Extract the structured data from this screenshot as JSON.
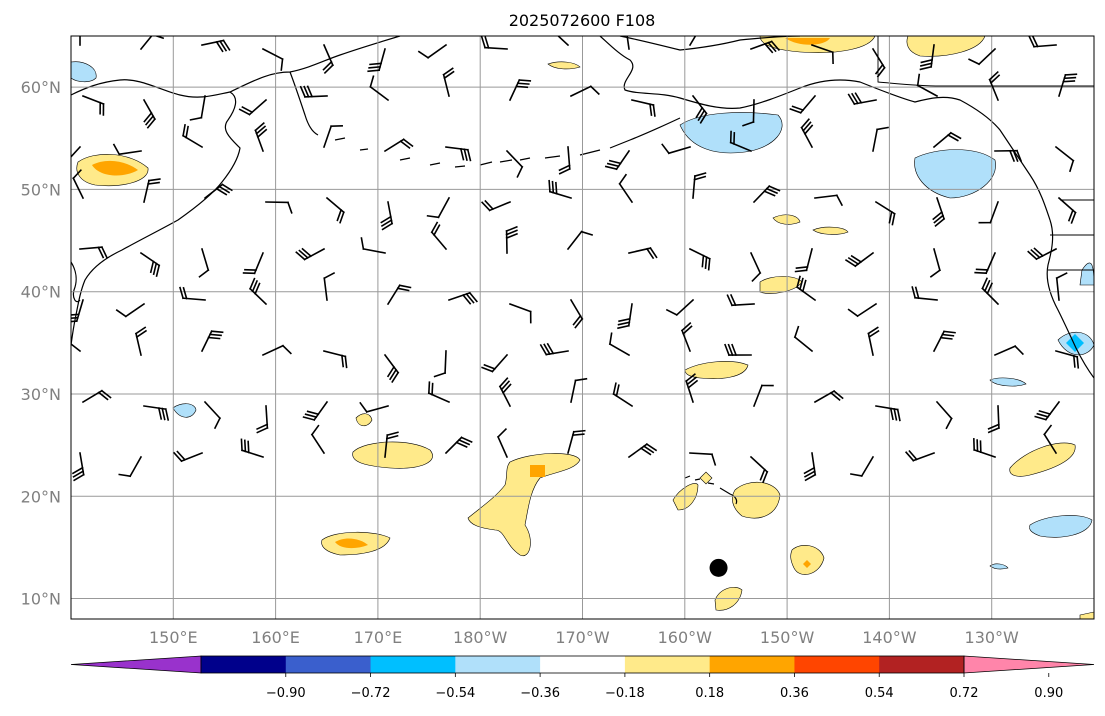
{
  "title": "2025072600 F108",
  "map": {
    "lat_labels": [
      "60°N",
      "50°N",
      "40°N",
      "30°N",
      "20°N",
      "10°N"
    ],
    "lon_labels": [
      "150°E",
      "160°E",
      "170°E",
      "180°W",
      "170°W",
      "160°W",
      "150°W",
      "140°W",
      "130°W"
    ],
    "lat_values": [
      60,
      50,
      40,
      30,
      20,
      10
    ],
    "lon_values": [
      150,
      160,
      170,
      180,
      190,
      200,
      210,
      220,
      230
    ],
    "extent": {
      "lon_min": 140,
      "lon_max": 240,
      "lat_min": 8,
      "lat_max": 65
    },
    "grid": true,
    "storm_marker": {
      "lon": 203.3,
      "lat": 13.0
    }
  },
  "colorbar": {
    "ticks": [
      "−0.90",
      "−0.72",
      "−0.54",
      "−0.36",
      "−0.18",
      "0.18",
      "0.36",
      "0.54",
      "0.72",
      "0.90"
    ],
    "colors": [
      "#9932cc",
      "#00008b",
      "#3a5fcd",
      "#00bfff",
      "#b0e0fa",
      "#ffffff",
      "#ffea8a",
      "#ffa500",
      "#ff4500",
      "#b22222",
      "#ff85aa"
    ],
    "extend": "both"
  }
}
